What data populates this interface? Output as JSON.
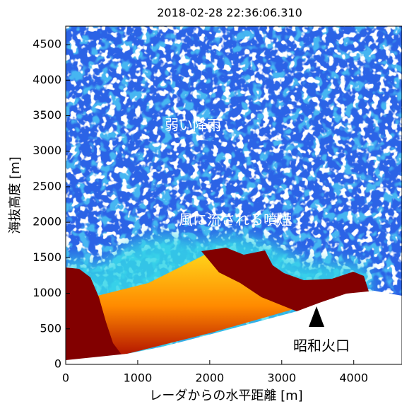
{
  "chart_data": {
    "type": "image",
    "title": "2018-02-28 22:36:06.310",
    "x_label": "レーダからの水平距離 [m]",
    "y_label": "海抜高度 [m]",
    "xlim": [
      0,
      4670
    ],
    "xticks": [
      0,
      1000,
      2000,
      3000,
      4000
    ],
    "ylim": [
      0,
      4760
    ],
    "yticks": [
      0,
      500,
      1000,
      1500,
      2000,
      2500,
      3000,
      3500,
      4000,
      4500
    ],
    "annotations": [
      "弱い降雨",
      "風に流される噴煙",
      "昭和火口"
    ]
  }
}
